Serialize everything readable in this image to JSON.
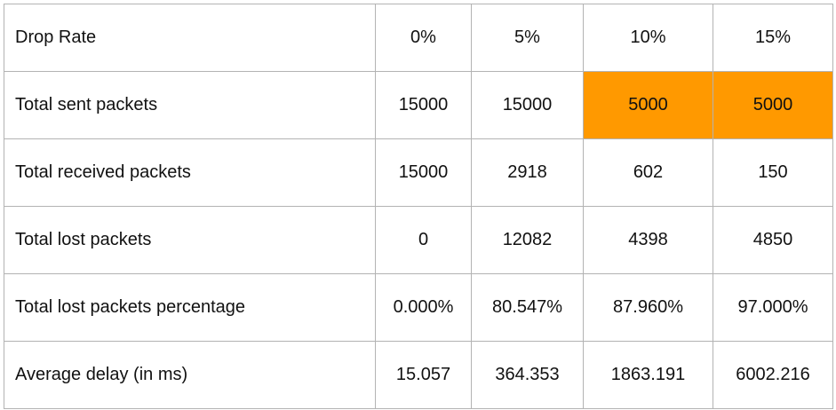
{
  "table": {
    "highlight_color": "#FF9900",
    "header": {
      "label": "Drop Rate",
      "values": [
        "0%",
        "5%",
        "10%",
        "15%"
      ]
    },
    "rows": [
      {
        "label": "Total sent packets",
        "values": [
          "15000",
          "15000",
          "5000",
          "5000"
        ],
        "highlighted": [
          false,
          false,
          true,
          true
        ]
      },
      {
        "label": "Total received packets",
        "values": [
          "15000",
          "2918",
          "602",
          "150"
        ],
        "highlighted": [
          false,
          false,
          false,
          false
        ]
      },
      {
        "label": "Total lost packets",
        "values": [
          "0",
          "12082",
          "4398",
          "4850"
        ],
        "highlighted": [
          false,
          false,
          false,
          false
        ]
      },
      {
        "label": "Total lost packets percentage",
        "values": [
          "0.000%",
          "80.547%",
          "87.960%",
          "97.000%"
        ],
        "highlighted": [
          false,
          false,
          false,
          false
        ]
      },
      {
        "label": "Average delay (in ms)",
        "values": [
          "15.057",
          "364.353",
          "1863.191",
          "6002.216"
        ],
        "highlighted": [
          false,
          false,
          false,
          false
        ]
      }
    ]
  }
}
